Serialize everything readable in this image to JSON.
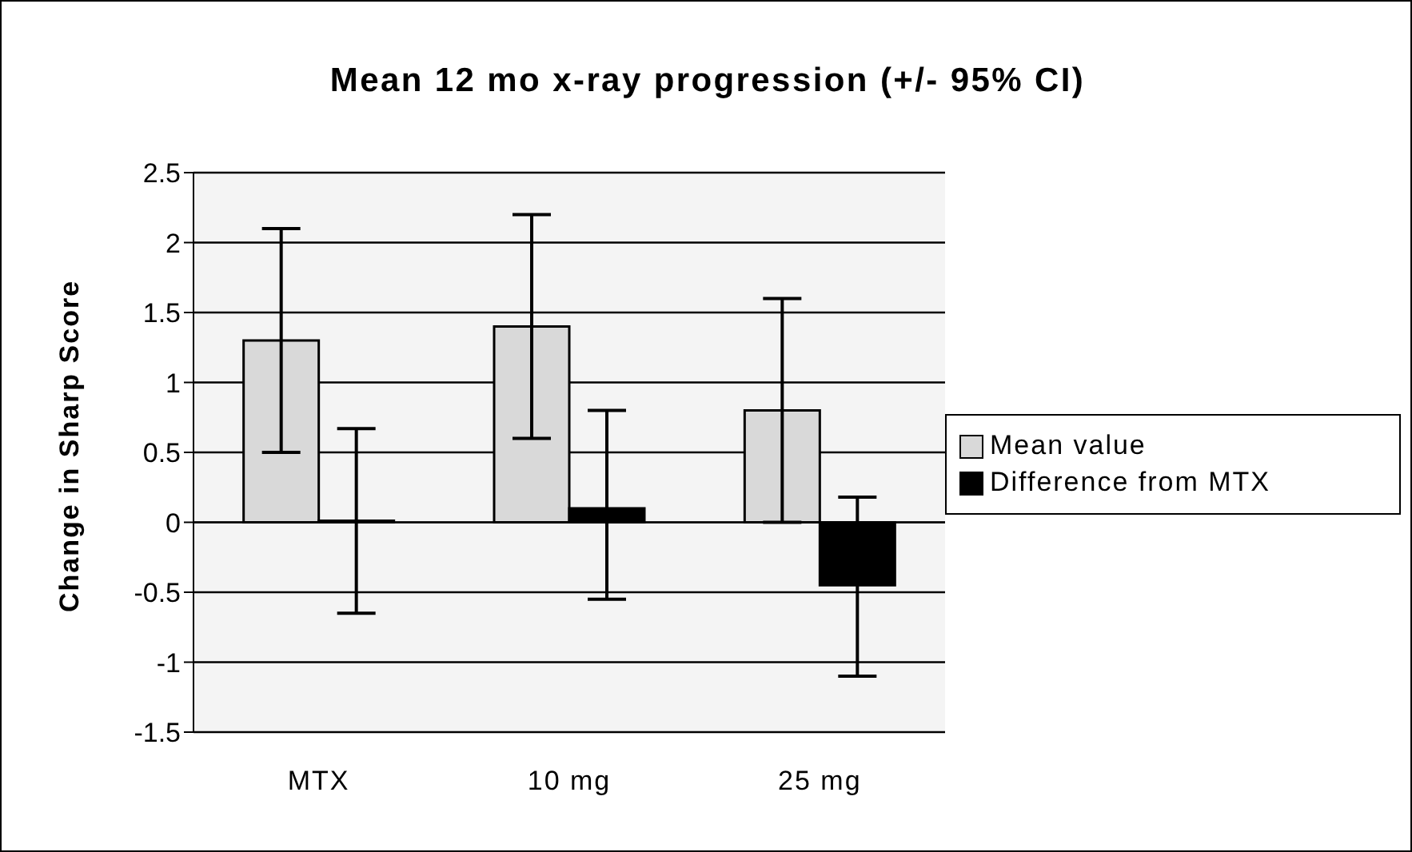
{
  "chart_data": {
    "type": "bar",
    "title": "Mean 12 mo x-ray progression (+/- 95% CI)",
    "ylabel": "Change in Sharp Score",
    "categories": [
      "MTX",
      "10 mg",
      "25 mg"
    ],
    "series": [
      {
        "name": "Mean value",
        "color": "#d9d9d9",
        "values": [
          1.3,
          1.4,
          0.8
        ],
        "errors": [
          [
            0.5,
            2.1
          ],
          [
            0.6,
            2.2
          ],
          [
            0,
            1.6
          ]
        ]
      },
      {
        "name": "Difference from MTX",
        "color": "#000000",
        "values": [
          0,
          0.1,
          -0.45
        ],
        "errors": [
          [
            -0.65,
            0.67
          ],
          [
            -0.55,
            0.8
          ],
          [
            -1.1,
            0.18
          ]
        ]
      }
    ],
    "ylim": [
      -1.5,
      2.5
    ],
    "yticks": [
      -1.5,
      -1,
      -0.5,
      0,
      0.5,
      1,
      1.5,
      2,
      2.5
    ],
    "grid": "y",
    "legend": "right"
  }
}
